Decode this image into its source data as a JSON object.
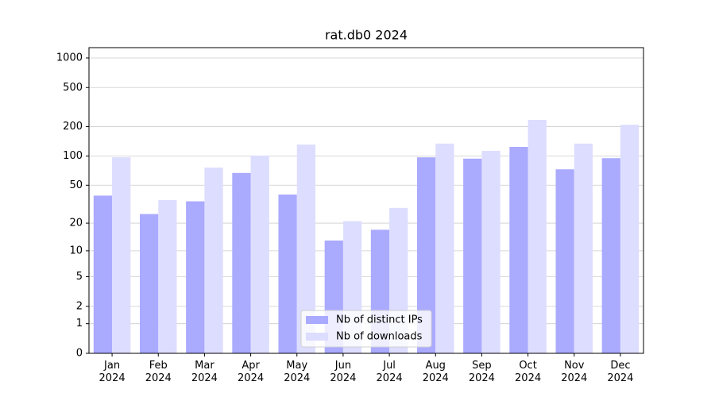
{
  "chart_data": {
    "type": "bar",
    "title": "rat.db0 2024",
    "scale": "log1p",
    "categories": [
      "Jan 2024",
      "Feb 2024",
      "Mar 2024",
      "Apr 2024",
      "May 2024",
      "Jun 2024",
      "Jul 2024",
      "Aug 2024",
      "Sep 2024",
      "Oct 2024",
      "Nov 2024",
      "Dec 2024"
    ],
    "series": [
      {
        "name": "Nb of distinct IPs",
        "color": "#aaaaff",
        "values": [
          39,
          25,
          34,
          67,
          40,
          13,
          17,
          97,
          94,
          124,
          73,
          95
        ]
      },
      {
        "name": "Nb of downloads",
        "color": "#ddddff",
        "values": [
          97,
          35,
          76,
          101,
          131,
          21,
          29,
          134,
          113,
          234,
          134,
          209
        ]
      }
    ],
    "ylim": [
      0,
      1273
    ],
    "yticks": [
      0,
      1,
      2,
      5,
      10,
      20,
      50,
      100,
      200,
      500,
      1000
    ],
    "grid": true,
    "legend": "lower center"
  }
}
